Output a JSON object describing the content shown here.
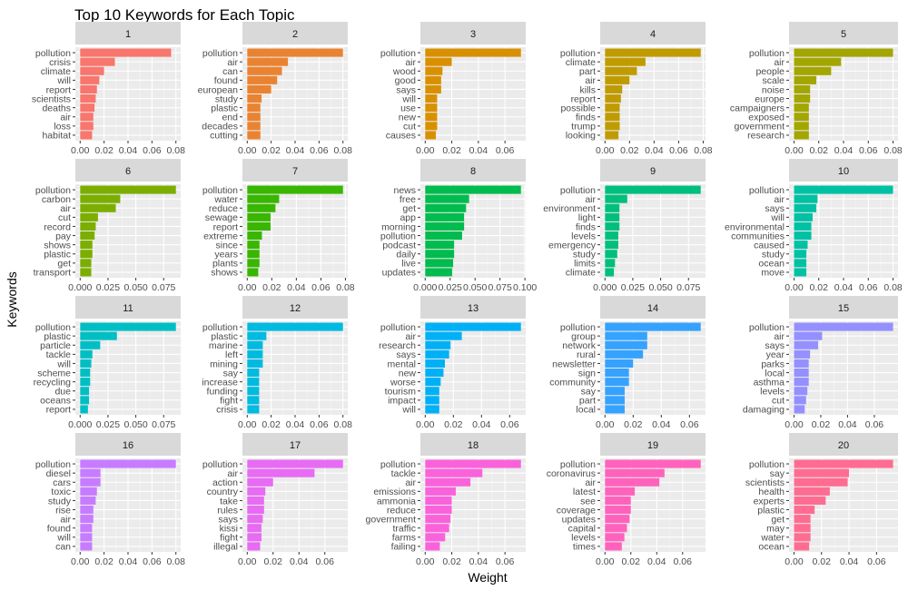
{
  "figure": {
    "title": "Top 10 Keywords for Each Topic",
    "xlabel": "Weight",
    "ylabel": "Keywords"
  },
  "chart_data": {
    "type": "bar",
    "orientation": "horizontal",
    "facets": "5 columns x 4 rows, free scales",
    "grid": true,
    "panels": [
      {
        "name": "1",
        "color": "#F8766D",
        "ticks": [
          "0.00",
          "0.02",
          "0.04",
          "0.06",
          "0.08"
        ],
        "tick_values": [
          0,
          0.02,
          0.04,
          0.06,
          0.08
        ],
        "xlim": [
          -0.004,
          0.084
        ],
        "categories": [
          "pollution",
          "crisis",
          "climate",
          "will",
          "report",
          "scientists",
          "deaths",
          "air",
          "loss",
          "habitat"
        ],
        "values": [
          0.076,
          0.029,
          0.02,
          0.016,
          0.014,
          0.013,
          0.012,
          0.011,
          0.011,
          0.01
        ]
      },
      {
        "name": "2",
        "color": "#EA8331",
        "ticks": [
          "0.00",
          "0.02",
          "0.04",
          "0.06",
          "0.08"
        ],
        "tick_values": [
          0,
          0.02,
          0.04,
          0.06,
          0.08
        ],
        "xlim": [
          -0.004,
          0.084
        ],
        "categories": [
          "pollution",
          "air",
          "can",
          "found",
          "european",
          "study",
          "plastic",
          "end",
          "decades",
          "cutting"
        ],
        "values": [
          0.08,
          0.034,
          0.029,
          0.025,
          0.02,
          0.012,
          0.011,
          0.011,
          0.011,
          0.011
        ]
      },
      {
        "name": "3",
        "color": "#D89000",
        "ticks": [
          "0.00",
          "0.02",
          "0.04",
          "0.06"
        ],
        "tick_values": [
          0,
          0.02,
          0.04,
          0.06
        ],
        "xlim": [
          -0.0036,
          0.0756
        ],
        "categories": [
          "pollution",
          "air",
          "wood",
          "good",
          "says",
          "will",
          "use",
          "new",
          "cut",
          "causes"
        ],
        "values": [
          0.072,
          0.02,
          0.013,
          0.012,
          0.012,
          0.009,
          0.009,
          0.009,
          0.009,
          0.008
        ]
      },
      {
        "name": "4",
        "color": "#C09B00",
        "ticks": [
          "0.00",
          "0.02",
          "0.04",
          "0.06",
          "0.08"
        ],
        "tick_values": [
          0,
          0.02,
          0.04,
          0.06,
          0.08
        ],
        "xlim": [
          -0.0039,
          0.0819
        ],
        "categories": [
          "pollution",
          "climate",
          "part",
          "air",
          "kills",
          "report",
          "possible",
          "finds",
          "trump",
          "looking"
        ],
        "values": [
          0.078,
          0.033,
          0.026,
          0.02,
          0.014,
          0.013,
          0.012,
          0.012,
          0.012,
          0.011
        ]
      },
      {
        "name": "5",
        "color": "#A3A500",
        "ticks": [
          "0.00",
          "0.02",
          "0.04",
          "0.06",
          "0.08"
        ],
        "tick_values": [
          0,
          0.02,
          0.04,
          0.06,
          0.08
        ],
        "xlim": [
          -0.004,
          0.084
        ],
        "categories": [
          "pollution",
          "air",
          "people",
          "scale",
          "noise",
          "europe",
          "campaigners",
          "exposed",
          "government",
          "research"
        ],
        "values": [
          0.08,
          0.038,
          0.03,
          0.018,
          0.013,
          0.013,
          0.012,
          0.012,
          0.012,
          0.012
        ]
      },
      {
        "name": "6",
        "color": "#7CAE00",
        "ticks": [
          "0.000",
          "0.025",
          "0.050",
          "0.075"
        ],
        "tick_values": [
          0,
          0.025,
          0.05,
          0.075
        ],
        "xlim": [
          -0.0043,
          0.0903
        ],
        "categories": [
          "pollution",
          "carbon",
          "air",
          "cut",
          "record",
          "pay",
          "shows",
          "plastic",
          "get",
          "transport"
        ],
        "values": [
          0.086,
          0.036,
          0.032,
          0.016,
          0.014,
          0.013,
          0.011,
          0.011,
          0.01,
          0.01
        ]
      },
      {
        "name": "7",
        "color": "#39B600",
        "ticks": [
          "0.00",
          "0.02",
          "0.04",
          "0.06",
          "0.08"
        ],
        "tick_values": [
          0,
          0.02,
          0.04,
          0.06,
          0.08
        ],
        "xlim": [
          -0.0039,
          0.0819
        ],
        "categories": [
          "pollution",
          "water",
          "reduce",
          "sewage",
          "report",
          "extreme",
          "since",
          "years",
          "plants",
          "shows"
        ],
        "values": [
          0.078,
          0.026,
          0.023,
          0.019,
          0.019,
          0.012,
          0.01,
          0.01,
          0.01,
          0.009
        ]
      },
      {
        "name": "8",
        "color": "#00BB4E",
        "ticks": [
          "0.000",
          "0.025",
          "0.050",
          "0.075",
          "0.100"
        ],
        "tick_values": [
          0,
          0.025,
          0.05,
          0.075,
          0.1
        ],
        "xlim": [
          -0.0048,
          0.1008
        ],
        "categories": [
          "news",
          "free",
          "get",
          "app",
          "morning",
          "pollution",
          "podcast",
          "daily",
          "live",
          "updates"
        ],
        "values": [
          0.096,
          0.044,
          0.041,
          0.039,
          0.039,
          0.037,
          0.029,
          0.029,
          0.028,
          0.027
        ]
      },
      {
        "name": "9",
        "color": "#00BF7D",
        "ticks": [
          "0.000",
          "0.025",
          "0.050",
          "0.075"
        ],
        "tick_values": [
          0,
          0.025,
          0.05,
          0.075
        ],
        "xlim": [
          -0.0043,
          0.0903
        ],
        "categories": [
          "pollution",
          "air",
          "environment",
          "light",
          "finds",
          "levels",
          "emergency",
          "study",
          "limits",
          "climate"
        ],
        "values": [
          0.086,
          0.02,
          0.013,
          0.013,
          0.013,
          0.012,
          0.012,
          0.011,
          0.009,
          0.008
        ]
      },
      {
        "name": "10",
        "color": "#00C1A3",
        "ticks": [
          "0.00",
          "0.02",
          "0.04",
          "0.06",
          "0.08"
        ],
        "tick_values": [
          0,
          0.02,
          0.04,
          0.06,
          0.08
        ],
        "xlim": [
          -0.004,
          0.084
        ],
        "categories": [
          "pollution",
          "air",
          "says",
          "will",
          "environmental",
          "communities",
          "caused",
          "study",
          "ocean",
          "move"
        ],
        "values": [
          0.08,
          0.019,
          0.018,
          0.015,
          0.014,
          0.014,
          0.011,
          0.01,
          0.01,
          0.01
        ]
      },
      {
        "name": "11",
        "color": "#00BFC4",
        "ticks": [
          "0.000",
          "0.025",
          "0.050",
          "0.075"
        ],
        "tick_values": [
          0,
          0.025,
          0.05,
          0.075
        ],
        "xlim": [
          -0.0043,
          0.0903
        ],
        "categories": [
          "pollution",
          "plastic",
          "particle",
          "tackle",
          "will",
          "scheme",
          "recycling",
          "due",
          "oceans",
          "report"
        ],
        "values": [
          0.086,
          0.033,
          0.018,
          0.011,
          0.01,
          0.009,
          0.009,
          0.008,
          0.008,
          0.007
        ]
      },
      {
        "name": "12",
        "color": "#00BAE0",
        "ticks": [
          "0.00",
          "0.02",
          "0.04",
          "0.06",
          "0.08"
        ],
        "tick_values": [
          0,
          0.02,
          0.04,
          0.06,
          0.08
        ],
        "xlim": [
          -0.004,
          0.084
        ],
        "categories": [
          "pollution",
          "plastic",
          "marine",
          "left",
          "mining",
          "say",
          "increase",
          "funding",
          "fight",
          "crisis"
        ],
        "values": [
          0.08,
          0.016,
          0.013,
          0.013,
          0.013,
          0.01,
          0.01,
          0.01,
          0.01,
          0.01
        ]
      },
      {
        "name": "13",
        "color": "#00B0F6",
        "ticks": [
          "0.00",
          "0.02",
          "0.04",
          "0.06"
        ],
        "tick_values": [
          0,
          0.02,
          0.04,
          0.06
        ],
        "xlim": [
          -0.0034,
          0.0714
        ],
        "categories": [
          "pollution",
          "air",
          "research",
          "says",
          "mental",
          "new",
          "worse",
          "tourism",
          "impact",
          "will"
        ],
        "values": [
          0.068,
          0.026,
          0.018,
          0.017,
          0.014,
          0.013,
          0.011,
          0.01,
          0.01,
          0.01
        ]
      },
      {
        "name": "14",
        "color": "#35A2FF",
        "ticks": [
          "0.00",
          "0.02",
          "0.04",
          "0.06"
        ],
        "tick_values": [
          0,
          0.02,
          0.04,
          0.06
        ],
        "xlim": [
          -0.0034,
          0.0714
        ],
        "categories": [
          "pollution",
          "group",
          "network",
          "rural",
          "newsletter",
          "sign",
          "community",
          "say",
          "part",
          "local"
        ],
        "values": [
          0.068,
          0.03,
          0.03,
          0.027,
          0.02,
          0.017,
          0.017,
          0.014,
          0.014,
          0.014
        ]
      },
      {
        "name": "15",
        "color": "#9590FF",
        "ticks": [
          "0.00",
          "0.02",
          "0.04",
          "0.06"
        ],
        "tick_values": [
          0,
          0.02,
          0.04,
          0.06
        ],
        "xlim": [
          -0.0037,
          0.0777
        ],
        "categories": [
          "pollution",
          "air",
          "says",
          "year",
          "parks",
          "local",
          "asthma",
          "levels",
          "cut",
          "damaging"
        ],
        "values": [
          0.074,
          0.021,
          0.018,
          0.012,
          0.011,
          0.011,
          0.011,
          0.01,
          0.009,
          0.008
        ]
      },
      {
        "name": "16",
        "color": "#C77CFF",
        "ticks": [
          "0.00",
          "0.02",
          "0.04",
          "0.06",
          "0.08"
        ],
        "tick_values": [
          0,
          0.02,
          0.04,
          0.06,
          0.08
        ],
        "xlim": [
          -0.004,
          0.084
        ],
        "categories": [
          "pollution",
          "diesel",
          "cars",
          "toxic",
          "study",
          "rise",
          "air",
          "found",
          "will",
          "can"
        ],
        "values": [
          0.08,
          0.017,
          0.017,
          0.014,
          0.013,
          0.011,
          0.011,
          0.01,
          0.01,
          0.01
        ]
      },
      {
        "name": "17",
        "color": "#E76BF3",
        "ticks": [
          "0.00",
          "0.02",
          "0.04",
          "0.06"
        ],
        "tick_values": [
          0,
          0.02,
          0.04,
          0.06
        ],
        "xlim": [
          -0.0037,
          0.0777
        ],
        "categories": [
          "pollution",
          "air",
          "action",
          "country",
          "take",
          "rules",
          "says",
          "kissi",
          "fight",
          "illegal"
        ],
        "values": [
          0.074,
          0.052,
          0.02,
          0.014,
          0.013,
          0.013,
          0.012,
          0.011,
          0.011,
          0.01
        ]
      },
      {
        "name": "18",
        "color": "#FA62DB",
        "ticks": [
          "0.00",
          "0.02",
          "0.04",
          "0.06"
        ],
        "tick_values": [
          0,
          0.02,
          0.04,
          0.06
        ],
        "xlim": [
          -0.0036,
          0.0756
        ],
        "categories": [
          "pollution",
          "tackle",
          "air",
          "emissions",
          "ammonia",
          "reduce",
          "government",
          "traffic",
          "farms",
          "failing"
        ],
        "values": [
          0.072,
          0.043,
          0.034,
          0.023,
          0.02,
          0.02,
          0.019,
          0.018,
          0.015,
          0.011
        ]
      },
      {
        "name": "19",
        "color": "#FF62BC",
        "ticks": [
          "0.00",
          "0.02",
          "0.04",
          "0.06"
        ],
        "tick_values": [
          0,
          0.02,
          0.04,
          0.06
        ],
        "xlim": [
          -0.0037,
          0.0777
        ],
        "categories": [
          "pollution",
          "coronavirus",
          "air",
          "latest",
          "see",
          "coverage",
          "updates",
          "capital",
          "levels",
          "times"
        ],
        "values": [
          0.074,
          0.046,
          0.042,
          0.023,
          0.02,
          0.02,
          0.019,
          0.017,
          0.015,
          0.013
        ]
      },
      {
        "name": "20",
        "color": "#FF6C91",
        "ticks": [
          "0.00",
          "0.02",
          "0.04",
          "0.06"
        ],
        "tick_values": [
          0,
          0.02,
          0.04,
          0.06
        ],
        "xlim": [
          -0.0036,
          0.0756
        ],
        "categories": [
          "pollution",
          "say",
          "scientists",
          "health",
          "experts",
          "plastic",
          "get",
          "may",
          "water",
          "ocean"
        ],
        "values": [
          0.072,
          0.04,
          0.039,
          0.026,
          0.023,
          0.015,
          0.012,
          0.012,
          0.012,
          0.011
        ]
      }
    ]
  }
}
